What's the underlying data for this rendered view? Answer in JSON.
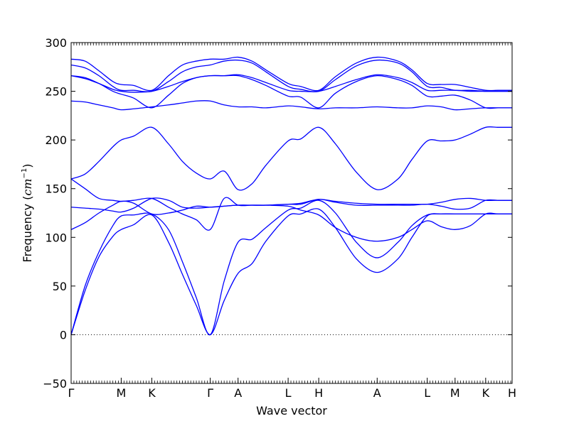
{
  "chart_data": {
    "type": "line",
    "title": "",
    "xlabel": "Wave vector",
    "ylabel": "Frequency",
    "ylabel_unit": "cm",
    "ylabel_unit_power": "−1",
    "ylim": [
      -50,
      300
    ],
    "yticks": [
      -50,
      0,
      50,
      100,
      150,
      200,
      250,
      300
    ],
    "xlim": [
      0,
      3.17
    ],
    "xticks": [
      {
        "pos": 0.0,
        "label": "Γ"
      },
      {
        "pos": 0.36,
        "label": "M"
      },
      {
        "pos": 0.58,
        "label": "K"
      },
      {
        "pos": 1.0,
        "label": "Γ"
      },
      {
        "pos": 1.2,
        "label": "A"
      },
      {
        "pos": 1.56,
        "label": "L"
      },
      {
        "pos": 1.78,
        "label": "H"
      },
      {
        "pos": 2.2,
        "label": "A"
      },
      {
        "pos": 2.56,
        "label": "L"
      },
      {
        "pos": 2.76,
        "label": "M"
      },
      {
        "pos": 2.98,
        "label": "K"
      },
      {
        "pos": 3.17,
        "label": "H"
      }
    ],
    "zero_line": {
      "y": 0,
      "style": "dotted"
    },
    "line_color": "#0000ff",
    "series": [
      {
        "x": [
          0,
          0.1,
          0.2,
          0.3,
          0.36,
          0.45,
          0.58,
          0.7,
          0.8,
          0.9,
          1.0,
          1.1,
          1.2,
          1.3,
          1.4,
          1.56,
          1.65,
          1.78,
          1.9,
          2.05,
          2.2,
          2.35,
          2.45,
          2.56,
          2.66,
          2.76,
          2.87,
          2.98,
          3.07,
          3.17
        ],
        "values": [
          0,
          45,
          80,
          101,
          108,
          113,
          123,
          95,
          62,
          30,
          0,
          35,
          63,
          73,
          96,
          122,
          124,
          129,
          110,
          78,
          64,
          78,
          100,
          122,
          124,
          124,
          124,
          124,
          124,
          124
        ]
      },
      {
        "x": [
          0,
          0.1,
          0.2,
          0.3,
          0.36,
          0.45,
          0.58,
          0.7,
          0.8,
          0.9,
          1.0,
          1.1,
          1.2,
          1.3,
          1.4,
          1.56,
          1.65,
          1.78,
          1.9,
          2.05,
          2.2,
          2.35,
          2.45,
          2.56,
          2.66,
          2.76,
          2.87,
          2.98,
          3.07,
          3.17
        ],
        "values": [
          0,
          50,
          85,
          112,
          122,
          123,
          124,
          108,
          75,
          38,
          0,
          55,
          95,
          98,
          110,
          128,
          130,
          138,
          125,
          95,
          79,
          95,
          112,
          123,
          124,
          124,
          124,
          124,
          124,
          124
        ]
      },
      {
        "x": [
          0,
          0.1,
          0.2,
          0.3,
          0.36,
          0.45,
          0.58,
          0.7,
          0.8,
          0.9,
          1.0,
          1.1,
          1.2,
          1.3,
          1.4,
          1.56,
          1.65,
          1.78,
          1.9,
          2.05,
          2.2,
          2.35,
          2.45,
          2.56,
          2.66,
          2.76,
          2.87,
          2.98,
          3.07,
          3.17
        ],
        "values": [
          108,
          115,
          125,
          133,
          137,
          135,
          124,
          125,
          128,
          132,
          131,
          132,
          133,
          133,
          133,
          132,
          128,
          123,
          110,
          100,
          96,
          100,
          108,
          117,
          111,
          108,
          112,
          124,
          124,
          124
        ]
      },
      {
        "x": [
          0,
          0.1,
          0.2,
          0.3,
          0.36,
          0.45,
          0.58,
          0.7,
          0.8,
          0.9,
          1.0,
          1.1,
          1.2,
          1.3,
          1.4,
          1.56,
          1.65,
          1.78,
          1.9,
          2.05,
          2.2,
          2.35,
          2.45,
          2.56,
          2.66,
          2.76,
          2.87,
          2.98,
          3.07,
          3.17
        ],
        "values": [
          131,
          130,
          129,
          127,
          126,
          130,
          140,
          138,
          131,
          130,
          131,
          132,
          133,
          133,
          133,
          134,
          134,
          139,
          136,
          133,
          133,
          133,
          133,
          134,
          132,
          129,
          130,
          138,
          138,
          138
        ]
      },
      {
        "x": [
          0,
          0.1,
          0.2,
          0.3,
          0.36,
          0.45,
          0.58,
          0.7,
          0.8,
          0.9,
          1.0,
          1.1,
          1.2,
          1.3,
          1.4,
          1.56,
          1.65,
          1.78,
          1.9,
          2.05,
          2.2,
          2.35,
          2.45,
          2.56,
          2.66,
          2.76,
          2.87,
          2.98,
          3.07,
          3.17
        ],
        "values": [
          160,
          150,
          140,
          138,
          137,
          138,
          140,
          131,
          124,
          118,
          108,
          140,
          133,
          133,
          133,
          134,
          135,
          139,
          137,
          135,
          134,
          134,
          134,
          134,
          136,
          139,
          140,
          138,
          138,
          138
        ]
      },
      {
        "x": [
          0,
          0.1,
          0.2,
          0.3,
          0.36,
          0.45,
          0.58,
          0.7,
          0.8,
          0.9,
          1.0,
          1.1,
          1.2,
          1.3,
          1.4,
          1.56,
          1.65,
          1.78,
          1.9,
          2.05,
          2.2,
          2.35,
          2.45,
          2.56,
          2.66,
          2.76,
          2.87,
          2.98,
          3.07,
          3.17
        ],
        "values": [
          160,
          165,
          178,
          193,
          200,
          204,
          213,
          196,
          178,
          166,
          160,
          168,
          149,
          155,
          174,
          199,
          201,
          213,
          196,
          167,
          149,
          160,
          180,
          199,
          199,
          200,
          206,
          213,
          213,
          213
        ]
      },
      {
        "x": [
          0,
          0.1,
          0.2,
          0.3,
          0.36,
          0.45,
          0.58,
          0.7,
          0.8,
          0.9,
          1.0,
          1.1,
          1.2,
          1.3,
          1.4,
          1.56,
          1.65,
          1.78,
          1.9,
          2.05,
          2.2,
          2.35,
          2.45,
          2.56,
          2.66,
          2.76,
          2.87,
          2.98,
          3.07,
          3.17
        ],
        "values": [
          240,
          239,
          236,
          233,
          231,
          232,
          234,
          236,
          238,
          240,
          240,
          236,
          234,
          234,
          233,
          235,
          234,
          232,
          233,
          233,
          234,
          233,
          233,
          235,
          234,
          231,
          232,
          233,
          233,
          233
        ]
      },
      {
        "x": [
          0,
          0.1,
          0.2,
          0.3,
          0.36,
          0.45,
          0.58,
          0.7,
          0.8,
          0.9,
          1.0,
          1.1,
          1.2,
          1.3,
          1.4,
          1.56,
          1.65,
          1.78,
          1.9,
          2.05,
          2.2,
          2.35,
          2.45,
          2.56,
          2.66,
          2.76,
          2.87,
          2.98,
          3.07,
          3.17
        ],
        "values": [
          266,
          264,
          258,
          250,
          247,
          243,
          233,
          246,
          258,
          264,
          266,
          266,
          266,
          262,
          256,
          245,
          244,
          233,
          248,
          260,
          266,
          262,
          256,
          245,
          245,
          246,
          241,
          233,
          233,
          233
        ]
      },
      {
        "x": [
          0,
          0.1,
          0.2,
          0.3,
          0.36,
          0.45,
          0.58,
          0.7,
          0.8,
          0.9,
          1.0,
          1.1,
          1.2,
          1.3,
          1.4,
          1.56,
          1.65,
          1.78,
          1.9,
          2.05,
          2.2,
          2.35,
          2.45,
          2.56,
          2.66,
          2.76,
          2.87,
          2.98,
          3.07,
          3.17
        ],
        "values": [
          266,
          263,
          258,
          252,
          250,
          249,
          250,
          255,
          260,
          264,
          266,
          266,
          267,
          264,
          259,
          251,
          250,
          250,
          255,
          262,
          267,
          264,
          259,
          251,
          251,
          251,
          250,
          250,
          250,
          250
        ]
      },
      {
        "x": [
          0,
          0.1,
          0.2,
          0.3,
          0.36,
          0.45,
          0.58,
          0.7,
          0.8,
          0.9,
          1.0,
          1.1,
          1.2,
          1.3,
          1.4,
          1.56,
          1.65,
          1.78,
          1.9,
          2.05,
          2.2,
          2.35,
          2.45,
          2.56,
          2.66,
          2.76,
          2.87,
          2.98,
          3.07,
          3.17
        ],
        "values": [
          277,
          274,
          266,
          255,
          251,
          251,
          250,
          260,
          270,
          275,
          277,
          281,
          282,
          279,
          270,
          255,
          252,
          250,
          262,
          276,
          282,
          279,
          270,
          255,
          254,
          251,
          251,
          250,
          250,
          250
        ]
      },
      {
        "x": [
          0,
          0.1,
          0.2,
          0.3,
          0.36,
          0.45,
          0.58,
          0.7,
          0.8,
          0.9,
          1.0,
          1.1,
          1.2,
          1.3,
          1.4,
          1.56,
          1.65,
          1.78,
          1.9,
          2.05,
          2.2,
          2.35,
          2.45,
          2.56,
          2.66,
          2.76,
          2.87,
          2.98,
          3.07,
          3.17
        ],
        "values": [
          283,
          281,
          271,
          260,
          257,
          256,
          251,
          266,
          277,
          281,
          283,
          283,
          285,
          281,
          272,
          258,
          255,
          251,
          265,
          279,
          285,
          281,
          272,
          258,
          257,
          257,
          254,
          251,
          251,
          251
        ]
      }
    ]
  }
}
